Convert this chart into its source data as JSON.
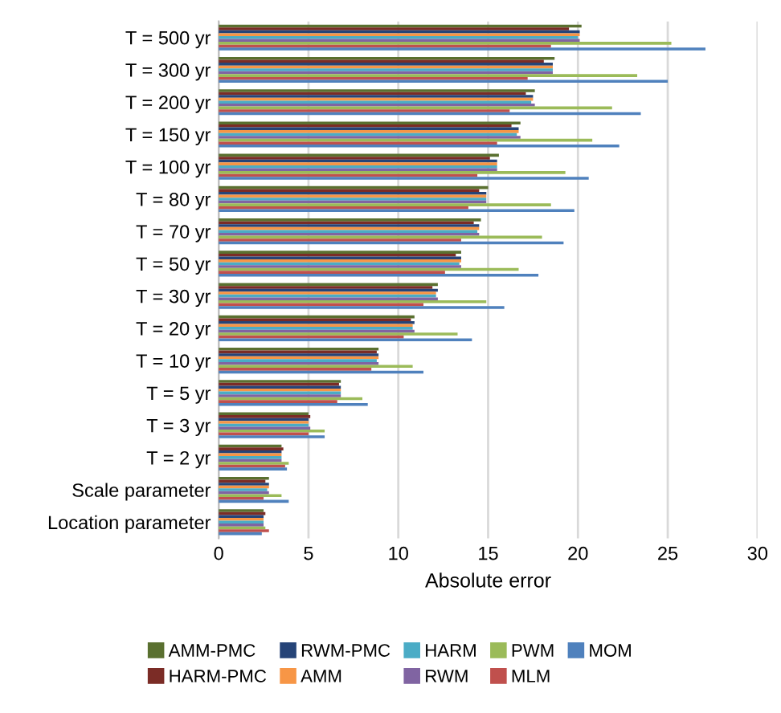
{
  "chart_data": {
    "type": "bar",
    "orientation": "horizontal",
    "xlabel": "Absolute error",
    "categories": [
      "T = 500 yr",
      "T = 300 yr",
      "T = 200 yr",
      "T = 150 yr",
      "T = 100 yr",
      "T = 80 yr",
      "T = 70 yr",
      "T = 50 yr",
      "T = 30 yr",
      "T = 20 yr",
      "T = 10 yr",
      "T = 5 yr",
      "T = 3 yr",
      "T = 2 yr",
      "Scale parameter",
      "Location parameter"
    ],
    "series": [
      {
        "name": "AMM-PMC",
        "color": "#5a7030",
        "values": [
          20.2,
          18.7,
          17.6,
          16.8,
          15.6,
          15.0,
          14.6,
          13.5,
          12.2,
          10.9,
          8.9,
          6.8,
          5.0,
          3.5,
          2.8,
          2.5
        ]
      },
      {
        "name": "HARM-PMC",
        "color": "#7b2c26",
        "values": [
          19.5,
          18.1,
          17.1,
          16.3,
          15.1,
          14.5,
          14.2,
          13.2,
          11.9,
          10.7,
          8.8,
          6.7,
          5.1,
          3.6,
          2.6,
          2.6
        ]
      },
      {
        "name": "RWM-PMC",
        "color": "#264478",
        "values": [
          20.1,
          18.6,
          17.5,
          16.7,
          15.5,
          14.9,
          14.5,
          13.5,
          12.2,
          10.9,
          8.9,
          6.8,
          5.0,
          3.5,
          2.8,
          2.5
        ]
      },
      {
        "name": "AMM",
        "color": "#f79646",
        "values": [
          20.1,
          18.6,
          17.5,
          16.7,
          15.5,
          14.9,
          14.5,
          13.5,
          12.1,
          10.8,
          8.9,
          6.8,
          5.0,
          3.5,
          2.8,
          2.5
        ]
      },
      {
        "name": "HARM",
        "color": "#4bacc6",
        "values": [
          20.0,
          18.6,
          17.4,
          16.6,
          15.5,
          14.9,
          14.4,
          13.4,
          12.1,
          10.8,
          8.8,
          6.8,
          5.0,
          3.5,
          2.7,
          2.5
        ]
      },
      {
        "name": "RWM",
        "color": "#8064a2",
        "values": [
          20.1,
          18.6,
          17.6,
          16.8,
          15.5,
          14.9,
          14.5,
          13.5,
          12.2,
          10.9,
          8.9,
          6.8,
          5.1,
          3.5,
          2.8,
          2.5
        ]
      },
      {
        "name": "PWM",
        "color": "#9bbb59",
        "values": [
          25.2,
          23.3,
          21.9,
          20.8,
          19.3,
          18.5,
          18.0,
          16.7,
          14.9,
          13.3,
          10.8,
          8.0,
          5.9,
          3.9,
          3.5,
          2.6
        ]
      },
      {
        "name": "MLM",
        "color": "#c0504d",
        "values": [
          18.5,
          17.2,
          16.2,
          15.5,
          14.4,
          13.9,
          13.5,
          12.6,
          11.4,
          10.3,
          8.5,
          6.6,
          5.0,
          3.7,
          2.5,
          2.8
        ]
      },
      {
        "name": "MOM",
        "color": "#4f81bd",
        "values": [
          27.1,
          25.0,
          23.5,
          22.3,
          20.6,
          19.8,
          19.2,
          17.8,
          15.9,
          14.1,
          11.4,
          8.3,
          5.9,
          3.8,
          3.9,
          2.4
        ]
      }
    ],
    "xlim": [
      0,
      30
    ],
    "xticks": [
      0,
      5,
      10,
      15,
      20,
      25,
      30
    ],
    "grid": "x",
    "legend": "bottom"
  }
}
